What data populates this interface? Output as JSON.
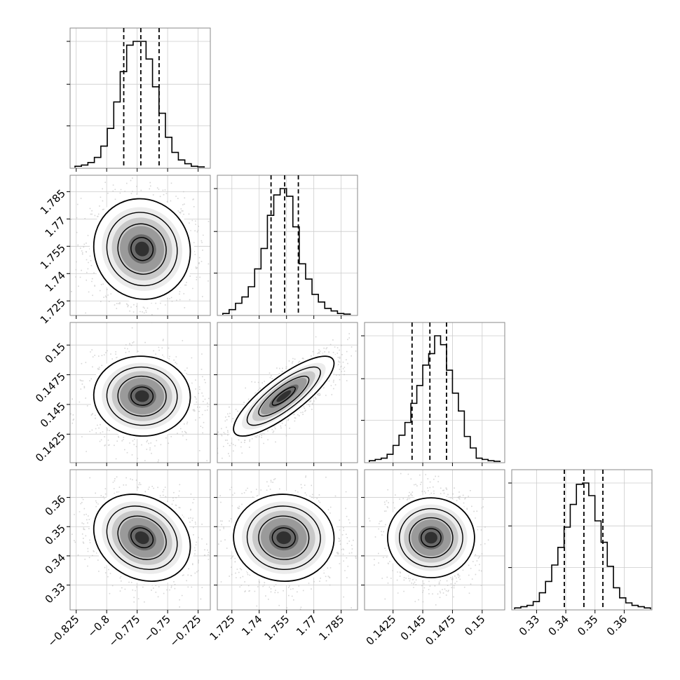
{
  "figure": {
    "type": "corner-plot",
    "panel_style": {
      "grid": true,
      "frame_color": "#888888",
      "grid_color": "#cccccc",
      "line_color": "#000000",
      "scatter_color": "#bbbbbb"
    }
  },
  "chart_data": [
    {
      "type": "histogram",
      "panel": "diag-0",
      "x_range": [
        -0.83,
        -0.715
      ],
      "bin_edges_range": [
        -0.826,
        -0.72
      ],
      "counts": [
        1,
        2,
        4,
        8,
        17,
        31,
        52,
        76,
        97,
        100,
        100,
        86,
        64,
        43,
        24,
        12,
        6,
        3,
        1,
        0.5
      ],
      "quantiles": [
        -0.786,
        -0.772,
        -0.757
      ],
      "x_ticks": [
        -0.825,
        -0.8,
        -0.775,
        -0.75,
        -0.725
      ]
    },
    {
      "type": "histogram",
      "panel": "diag-1",
      "x_range": [
        1.717,
        1.794
      ],
      "bin_edges_range": [
        1.72,
        1.79
      ],
      "counts": [
        1,
        4,
        9,
        14,
        22,
        36,
        52,
        78,
        94,
        99,
        93,
        69,
        40,
        28,
        16,
        10,
        5,
        3,
        1,
        0.5
      ],
      "quantiles": [
        1.7465,
        1.754,
        1.7615
      ],
      "x_ticks": [
        1.725,
        1.74,
        1.755,
        1.77,
        1.785
      ],
      "y_ticks": [
        1.725,
        1.74,
        1.755,
        1.77,
        1.785
      ]
    },
    {
      "type": "histogram",
      "panel": "diag-2",
      "x_range": [
        0.1401,
        0.1519
      ],
      "bin_edges_range": [
        0.1405,
        0.1515
      ],
      "counts": [
        1,
        2,
        3,
        6,
        13,
        21,
        31,
        46,
        60,
        76,
        85,
        99,
        92,
        72,
        54,
        40,
        20,
        11,
        3,
        2,
        1,
        0.5
      ],
      "quantiles": [
        0.1441,
        0.1456,
        0.147
      ],
      "x_ticks": [
        0.1425,
        0.145,
        0.1475,
        0.15
      ],
      "y_ticks": [
        0.1425,
        0.145,
        0.1475,
        0.15
      ]
    },
    {
      "type": "histogram",
      "panel": "diag-3",
      "x_range": [
        0.3215,
        0.3695
      ],
      "bin_edges_range": [
        0.3225,
        0.369
      ],
      "counts": [
        1,
        2,
        3,
        6,
        13,
        22,
        35,
        49,
        65,
        83,
        99,
        100,
        90,
        70,
        53,
        34,
        17,
        9,
        5,
        3,
        2,
        1
      ],
      "quantiles": [
        0.3395,
        0.3462,
        0.3527
      ],
      "x_ticks": [
        0.33,
        0.34,
        0.35,
        0.36
      ],
      "y_ticks": [
        0.33,
        0.34,
        0.35,
        0.36
      ]
    },
    {
      "type": "heatmap",
      "panel": "2d-1-0",
      "x_param": 0,
      "y_param": 1,
      "center": [
        -0.771,
        1.7535
      ],
      "sigma": [
        0.0165,
        0.0115
      ],
      "rho": -0.05
    },
    {
      "type": "heatmap",
      "panel": "2d-2-0",
      "x_param": 0,
      "y_param": 2,
      "center": [
        -0.771,
        0.1457
      ],
      "sigma": [
        0.0165,
        0.0014
      ],
      "rho": -0.02
    },
    {
      "type": "heatmap",
      "panel": "2d-2-1",
      "x_param": 1,
      "y_param": 2,
      "center": [
        1.7535,
        0.1457
      ],
      "sigma": [
        0.0115,
        0.0014
      ],
      "rho": 0.82
    },
    {
      "type": "heatmap",
      "panel": "2d-3-0",
      "x_param": 0,
      "y_param": 3,
      "center": [
        -0.771,
        0.3462
      ],
      "sigma": [
        0.0165,
        0.0062
      ],
      "rho": -0.2
    },
    {
      "type": "heatmap",
      "panel": "2d-3-1",
      "x_param": 1,
      "y_param": 3,
      "center": [
        1.7535,
        0.3462
      ],
      "sigma": [
        0.0115,
        0.0062
      ],
      "rho": -0.02
    },
    {
      "type": "heatmap",
      "panel": "2d-3-2",
      "x_param": 2,
      "y_param": 3,
      "center": [
        0.1457,
        0.3462
      ],
      "sigma": [
        0.0014,
        0.0062
      ],
      "rho": 0.0
    }
  ]
}
